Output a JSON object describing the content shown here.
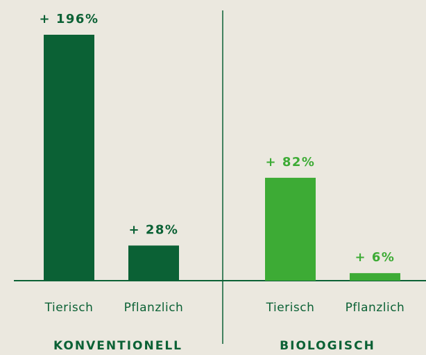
{
  "chart_data": {
    "type": "bar",
    "groups": [
      {
        "label": "KONVENTIONELL",
        "color": "#0b6135",
        "categories": [
          "Tierisch",
          "Pflanzlich"
        ],
        "values": [
          196,
          28
        ],
        "value_labels": [
          "+ 196%",
          "+ 28%"
        ]
      },
      {
        "label": "BIOLOGISCH",
        "color": "#3dab35",
        "categories": [
          "Tierisch",
          "Pflanzlich"
        ],
        "values": [
          82,
          6
        ],
        "value_labels": [
          "+ 82%",
          "+ 6%"
        ]
      }
    ]
  }
}
